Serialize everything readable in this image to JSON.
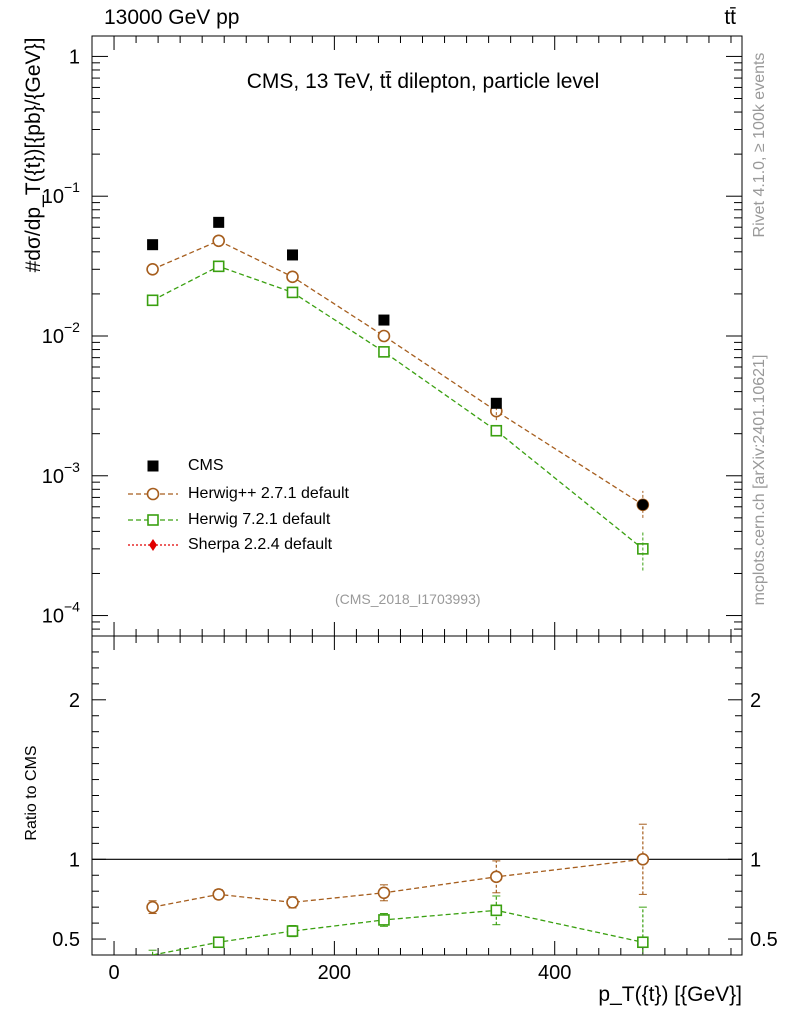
{
  "header": {
    "left": "13000 GeV pp",
    "right": "tt̄"
  },
  "title": "CMS, 13 TeV, tt̄ dilepton, particle level",
  "watermark": "(CMS_2018_I1703993)",
  "side_labels": {
    "rivet": "Rivet 4.1.0, ≥ 100k events",
    "mcplots": "mcplots.cern.ch [arXiv:2401.10621]"
  },
  "axes": {
    "main_ylabel": "#dσ/dp_T({t})[{pb}/{GeV}]",
    "main_ylabel_display": "# dσ/dp_T({t})]{pb}/{GeV}]",
    "ratio_ylabel": "Ratio to CMS",
    "xlabel": "p_T({t}) [{GeV}]",
    "xlabel_display": "p_T({t}) [{GeV}]",
    "x_ticks": [
      "0",
      "200",
      "400"
    ],
    "main_y_ticks": [
      "1",
      "10^-1",
      "10^-2",
      "10^-3",
      "10^-4"
    ],
    "ratio_y_ticks": [
      "0.5",
      "1",
      "2"
    ]
  },
  "legend": [
    {
      "label": "CMS",
      "color": "#000000",
      "marker": "filled-square"
    },
    {
      "label": "Herwig++ 2.7.1 default",
      "color": "#a65e1e",
      "marker": "open-circle"
    },
    {
      "label": "Herwig 7.2.1 default",
      "color": "#3aa010",
      "marker": "open-square"
    },
    {
      "label": "Sherpa 2.2.4 default",
      "color": "#e00000",
      "marker": "filled-diamond"
    }
  ],
  "chart_data": {
    "type": "scatter",
    "xlim": [
      -20,
      570
    ],
    "main_ylim": [
      7.14e-05,
      1.4
    ],
    "main_yscale": "log",
    "ratio_ylim": [
      0.4,
      2.4
    ],
    "x": [
      35,
      95,
      162,
      245,
      347,
      480
    ],
    "series": [
      {
        "name": "CMS",
        "color": "#000000",
        "values": [
          0.045,
          0.065,
          0.038,
          0.013,
          0.0033,
          0.00062
        ],
        "ratio": [
          1,
          1,
          1,
          1,
          1,
          1
        ]
      },
      {
        "name": "Herwig++ 2.7.1 default",
        "color": "#a65e1e",
        "values": [
          0.03,
          0.048,
          0.0265,
          0.01,
          0.0029,
          0.00062
        ],
        "ratio": [
          0.7,
          0.78,
          0.73,
          0.79,
          0.89,
          1.0
        ],
        "ratio_err": [
          0.04,
          0.03,
          0.035,
          0.05,
          0.1,
          0.22
        ]
      },
      {
        "name": "Herwig 7.2.1 default",
        "color": "#3aa010",
        "values": [
          0.018,
          0.0315,
          0.0205,
          0.0077,
          0.0021,
          0.0003
        ],
        "ratio": [
          0.4,
          0.48,
          0.55,
          0.62,
          0.68,
          0.48
        ],
        "ratio_err": [
          0.03,
          0.03,
          0.035,
          0.04,
          0.09,
          0.22
        ]
      },
      {
        "name": "Sherpa 2.2.4 default",
        "color": "#e00000",
        "values": [],
        "ratio": []
      }
    ]
  }
}
